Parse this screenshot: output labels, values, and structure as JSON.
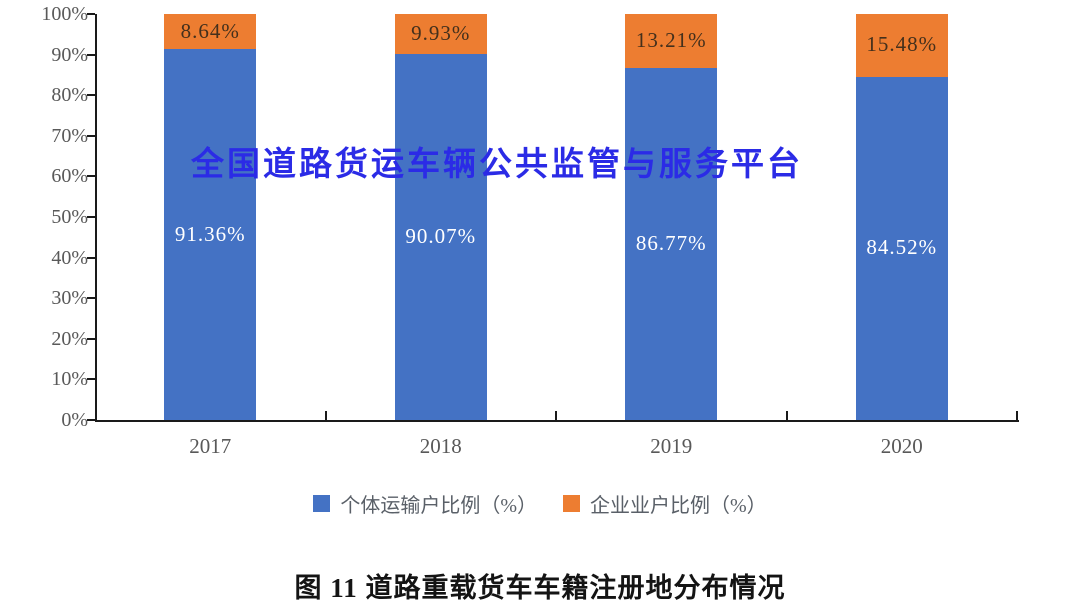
{
  "watermark": {
    "text": "全国道路货运车辆公共监管与服务平台",
    "color": "#2b2be6"
  },
  "caption": "图 11 道路重载货车车籍注册地分布情况",
  "colors": {
    "individual_blue": "#4472c4",
    "enterprise_orange": "#ed7d31",
    "label_on_blue": "#ffffff",
    "label_on_orange": "#44301c",
    "axis": "#1a1a1a",
    "tick_label": "#595959"
  },
  "chart_data": {
    "type": "bar",
    "subtype": "stacked",
    "title": "",
    "xlabel": "",
    "ylabel": "",
    "categories": [
      "2017",
      "2018",
      "2019",
      "2020"
    ],
    "series": [
      {
        "name": "个体运输户比例（%）",
        "color": "#4472c4",
        "label_color": "#ffffff",
        "values": [
          91.36,
          90.07,
          86.77,
          84.52
        ],
        "labels": [
          "91.36%",
          "90.07%",
          "86.77%",
          "84.52%"
        ]
      },
      {
        "name": "企业业户比例（%）",
        "color": "#ed7d31",
        "label_color": "#44301c",
        "values": [
          8.64,
          9.93,
          13.21,
          15.48
        ],
        "labels": [
          "8.64%",
          "9.93%",
          "13.21%",
          "15.48%"
        ]
      }
    ],
    "ylim": [
      0,
      100
    ],
    "yticks": [
      "0%",
      "10%",
      "20%",
      "30%",
      "40%",
      "50%",
      "60%",
      "70%",
      "80%",
      "90%",
      "100%"
    ],
    "grid": false,
    "legend_position": "bottom"
  }
}
